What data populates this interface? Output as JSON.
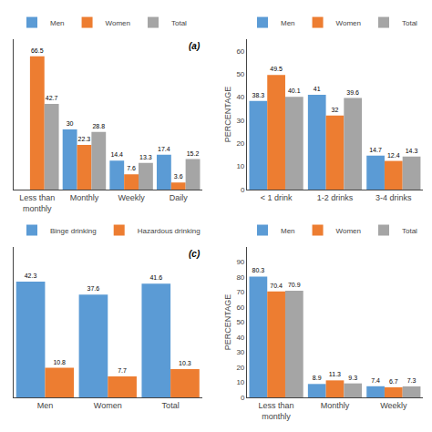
{
  "chart_data": [
    {
      "type": "bar",
      "categories": [
        "Less than\nmonthly",
        "Monthly",
        "Weekly",
        "Daily"
      ],
      "series": [
        {
          "name": "Men",
          "color": "#5B9BD5",
          "values": [
            null,
            30,
            14.4,
            17.4
          ]
        },
        {
          "name": "Women",
          "color": "#ED7D31",
          "values": [
            66.5,
            22.3,
            7.6,
            3.6
          ]
        },
        {
          "name": "Total",
          "color": "#A5A5A5",
          "values": [
            42.7,
            28.8,
            13.3,
            15.2
          ]
        }
      ],
      "ylim": [
        0,
        75
      ],
      "tick_labels": "x",
      "data_labels": true,
      "legend": "upper left",
      "annotations": [
        "(a)"
      ],
      "grid": false
    },
    {
      "type": "bar",
      "categories": [
        "< 1 drink",
        "1-2 drinks",
        "3-4 drinks"
      ],
      "series": [
        {
          "name": "Men",
          "color": "#5B9BD5",
          "values": [
            38.3,
            41,
            14.7
          ]
        },
        {
          "name": "Women",
          "color": "#ED7D31",
          "values": [
            49.5,
            32,
            12.4
          ]
        },
        {
          "name": "Total",
          "color": "#A5A5A5",
          "values": [
            40.1,
            39.6,
            14.3
          ]
        }
      ],
      "ylabel": "PERCENTAGE",
      "ylim": [
        0,
        65
      ],
      "yticks": [
        0,
        10,
        20,
        30,
        40,
        50,
        60
      ],
      "data_labels": true,
      "legend": "upper right",
      "grid": false
    },
    {
      "type": "bar",
      "categories": [
        "Men",
        "Women",
        "Total"
      ],
      "series": [
        {
          "name": "Binge drinking",
          "color": "#5B9BD5",
          "values": [
            42.3,
            37.6,
            41.6
          ]
        },
        {
          "name": "Hazardous drinking",
          "color": "#ED7D31",
          "values": [
            10.8,
            7.7,
            10.3
          ]
        }
      ],
      "ylim": [
        0,
        55
      ],
      "tick_labels": "x",
      "data_labels": true,
      "legend": "upper left",
      "annotations": [
        "(c)"
      ],
      "grid": false
    },
    {
      "type": "bar",
      "categories": [
        "Less than\nmonthly",
        "Monthly",
        "Weekly"
      ],
      "series": [
        {
          "name": "Men",
          "color": "#5B9BD5",
          "values": [
            80.3,
            8.9,
            7.4
          ]
        },
        {
          "name": "Women",
          "color": "#ED7D31",
          "values": [
            70.4,
            11.3,
            6.7
          ]
        },
        {
          "name": "Total",
          "color": "#A5A5A5",
          "values": [
            70.9,
            9.3,
            7.3
          ]
        }
      ],
      "ylabel": "PERCENTAGE",
      "ylim": [
        0,
        100
      ],
      "yticks": [
        0,
        10,
        20,
        30,
        40,
        50,
        60,
        70,
        80,
        90
      ],
      "data_labels": true,
      "legend": "upper right",
      "grid": false
    }
  ]
}
